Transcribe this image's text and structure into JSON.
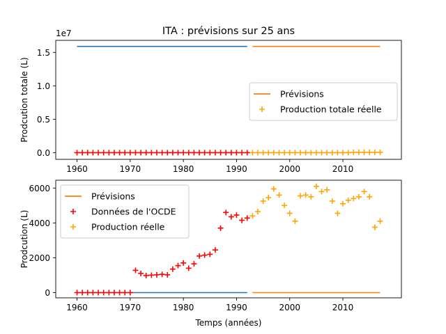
{
  "title": "ITA : prévisions sur 25 ans",
  "chart_data": [
    {
      "type": "line",
      "ylabel": "Prodcution totale (L)",
      "offset_label": "1e7",
      "xlim": [
        1956,
        2021
      ],
      "ylim": [
        -1000000,
        16800000
      ],
      "xticks": [
        1960,
        1970,
        1980,
        1990,
        2000,
        2010
      ],
      "xtick_labels": [
        "1960",
        "1970",
        "1980",
        "1990",
        "2000",
        "2010"
      ],
      "yticks": [
        0,
        5000000,
        10000000,
        15000000
      ],
      "ytick_labels": [
        "0.0",
        "0.5",
        "1.0",
        "1.5"
      ],
      "legend": {
        "position": "center-right",
        "entries": [
          {
            "label": "Prévisions",
            "marker": "line",
            "color": "#ff7f0e"
          },
          {
            "label": "Production totale réelle",
            "marker": "plus",
            "color": "#ffa500"
          }
        ]
      },
      "series": [
        {
          "kind": "line",
          "color": "#1f77b4",
          "x": [
            1960,
            1992
          ],
          "y": [
            15900000,
            15900000
          ]
        },
        {
          "kind": "line",
          "color": "#ff7f0e",
          "x": [
            1993,
            2017
          ],
          "y": [
            15900000,
            15900000
          ]
        },
        {
          "kind": "scatter",
          "color": "#ff0000",
          "x": [
            1960,
            1961,
            1962,
            1963,
            1964,
            1965,
            1966,
            1967,
            1968,
            1969,
            1970,
            1971,
            1972,
            1973,
            1974,
            1975,
            1976,
            1977,
            1978,
            1979,
            1980,
            1981,
            1982,
            1983,
            1984,
            1985,
            1986,
            1987,
            1988,
            1989,
            1990,
            1991,
            1992
          ],
          "y": [
            0,
            0,
            0,
            0,
            0,
            0,
            0,
            0,
            0,
            0,
            0,
            0,
            0,
            0,
            0,
            0,
            0,
            0,
            0,
            0,
            0,
            0,
            0,
            0,
            0,
            0,
            0,
            0,
            0,
            0,
            0,
            0,
            0
          ]
        },
        {
          "kind": "scatter",
          "color": "#ffa500",
          "x": [
            1993,
            1994,
            1995,
            1996,
            1997,
            1998,
            1999,
            2000,
            2001,
            2002,
            2003,
            2004,
            2005,
            2006,
            2007,
            2008,
            2009,
            2010,
            2011,
            2012,
            2013,
            2014,
            2015,
            2016,
            2017
          ],
          "y": [
            0,
            0,
            0,
            0,
            0,
            0,
            0,
            0,
            0,
            0,
            0,
            0,
            0,
            0,
            0,
            0,
            0,
            0,
            0,
            50000,
            50000,
            50000,
            50000,
            50000,
            50000
          ]
        }
      ]
    },
    {
      "type": "line",
      "xlabel": "Temps (années)",
      "ylabel": "Prodcution (L)",
      "xlim": [
        1956,
        2021
      ],
      "ylim": [
        -300,
        6450
      ],
      "xticks": [
        1960,
        1970,
        1980,
        1990,
        2000,
        2010
      ],
      "xtick_labels": [
        "1960",
        "1970",
        "1980",
        "1990",
        "2000",
        "2010"
      ],
      "yticks": [
        0,
        2000,
        4000,
        6000
      ],
      "ytick_labels": [
        "0",
        "2000",
        "4000",
        "6000"
      ],
      "legend": {
        "position": "upper-left",
        "entries": [
          {
            "label": "Prévisions",
            "marker": "line",
            "color": "#ff7f0e"
          },
          {
            "label": "Données de l'OCDE",
            "marker": "plus",
            "color": "#ff0000"
          },
          {
            "label": "Production réelle",
            "marker": "plus",
            "color": "#ffa500"
          }
        ]
      },
      "series": [
        {
          "kind": "line",
          "color": "#1f77b4",
          "x": [
            1960,
            1992
          ],
          "y": [
            0,
            0
          ]
        },
        {
          "kind": "line",
          "color": "#ff7f0e",
          "x": [
            1993,
            2017
          ],
          "y": [
            0,
            0
          ]
        },
        {
          "kind": "scatter",
          "color": "#ff0000",
          "x": [
            1960,
            1961,
            1962,
            1963,
            1964,
            1965,
            1966,
            1967,
            1968,
            1969,
            1970,
            1971,
            1972,
            1973,
            1974,
            1975,
            1976,
            1977,
            1978,
            1979,
            1980,
            1981,
            1982,
            1983,
            1984,
            1985,
            1986,
            1987,
            1988,
            1989,
            1990,
            1991,
            1992
          ],
          "y": [
            0,
            0,
            0,
            0,
            0,
            0,
            0,
            0,
            0,
            0,
            0,
            1280,
            1100,
            980,
            1000,
            1020,
            1050,
            1020,
            1350,
            1550,
            1700,
            1400,
            1650,
            2100,
            2150,
            2200,
            2450,
            3700,
            4600,
            4350,
            4450,
            4150,
            4280
          ]
        },
        {
          "kind": "scatter",
          "color": "#ffa500",
          "x": [
            1993,
            1994,
            1995,
            1996,
            1997,
            1998,
            1999,
            2000,
            2001,
            2002,
            2003,
            2004,
            2005,
            2006,
            2007,
            2008,
            2009,
            2010,
            2011,
            2012,
            2013,
            2014,
            2015,
            2016,
            2017
          ],
          "y": [
            4400,
            4650,
            5250,
            5450,
            5950,
            5600,
            5000,
            4550,
            4100,
            5550,
            5600,
            5500,
            6100,
            5800,
            5900,
            5250,
            4550,
            5100,
            5300,
            5400,
            5500,
            5800,
            5500,
            3750,
            4100
          ]
        }
      ]
    }
  ]
}
